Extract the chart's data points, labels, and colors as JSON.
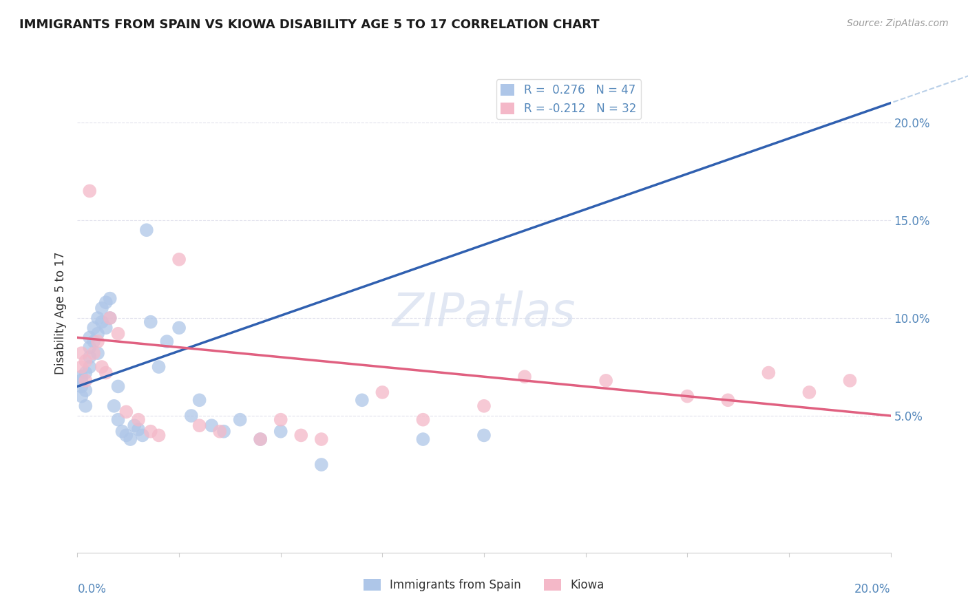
{
  "title": "IMMIGRANTS FROM SPAIN VS KIOWA DISABILITY AGE 5 TO 17 CORRELATION CHART",
  "source_text": "Source: ZipAtlas.com",
  "ylabel": "Disability Age 5 to 17",
  "xlim": [
    0.0,
    0.2
  ],
  "ylim": [
    -0.02,
    0.225
  ],
  "xtick_left_label": "0.0%",
  "xtick_right_label": "20.0%",
  "ytick_right": [
    0.05,
    0.1,
    0.15,
    0.2
  ],
  "ytick_right_labels": [
    "5.0%",
    "10.0%",
    "15.0%",
    "20.0%"
  ],
  "legend_entries": [
    {
      "label": "R =  0.276   N = 47",
      "color": "#aec6e8"
    },
    {
      "label": "R = -0.212   N = 32",
      "color": "#f4b8c8"
    }
  ],
  "legend_label_names": [
    "Immigrants from Spain",
    "Kiowa"
  ],
  "blue_scatter_color": "#aec6e8",
  "pink_scatter_color": "#f4b8c8",
  "trend_blue_color": "#3060b0",
  "trend_pink_color": "#e06080",
  "dashed_line_color": "#b8cfe8",
  "background_color": "#ffffff",
  "grid_color": "#e0e0ec",
  "tick_color": "#5588bb",
  "blue_scatter_x": [
    0.001,
    0.001,
    0.001,
    0.001,
    0.002,
    0.002,
    0.002,
    0.003,
    0.003,
    0.003,
    0.003,
    0.004,
    0.004,
    0.005,
    0.005,
    0.005,
    0.006,
    0.006,
    0.007,
    0.007,
    0.008,
    0.008,
    0.009,
    0.01,
    0.01,
    0.011,
    0.012,
    0.013,
    0.014,
    0.015,
    0.016,
    0.017,
    0.018,
    0.02,
    0.022,
    0.025,
    0.028,
    0.03,
    0.033,
    0.036,
    0.04,
    0.045,
    0.05,
    0.06,
    0.07,
    0.085,
    0.1
  ],
  "blue_scatter_y": [
    0.065,
    0.07,
    0.068,
    0.06,
    0.063,
    0.055,
    0.072,
    0.08,
    0.09,
    0.085,
    0.075,
    0.095,
    0.088,
    0.1,
    0.092,
    0.082,
    0.105,
    0.098,
    0.108,
    0.095,
    0.11,
    0.1,
    0.055,
    0.065,
    0.048,
    0.042,
    0.04,
    0.038,
    0.045,
    0.043,
    0.04,
    0.145,
    0.098,
    0.075,
    0.088,
    0.095,
    0.05,
    0.058,
    0.045,
    0.042,
    0.048,
    0.038,
    0.042,
    0.025,
    0.058,
    0.038,
    0.04
  ],
  "pink_scatter_x": [
    0.001,
    0.001,
    0.002,
    0.002,
    0.003,
    0.004,
    0.005,
    0.006,
    0.007,
    0.008,
    0.01,
    0.012,
    0.015,
    0.018,
    0.02,
    0.025,
    0.03,
    0.035,
    0.045,
    0.05,
    0.055,
    0.06,
    0.075,
    0.085,
    0.1,
    0.11,
    0.13,
    0.15,
    0.16,
    0.17,
    0.18,
    0.19
  ],
  "pink_scatter_y": [
    0.075,
    0.082,
    0.078,
    0.068,
    0.165,
    0.082,
    0.088,
    0.075,
    0.072,
    0.1,
    0.092,
    0.052,
    0.048,
    0.042,
    0.04,
    0.13,
    0.045,
    0.042,
    0.038,
    0.048,
    0.04,
    0.038,
    0.062,
    0.048,
    0.055,
    0.07,
    0.068,
    0.06,
    0.058,
    0.072,
    0.062,
    0.068
  ]
}
